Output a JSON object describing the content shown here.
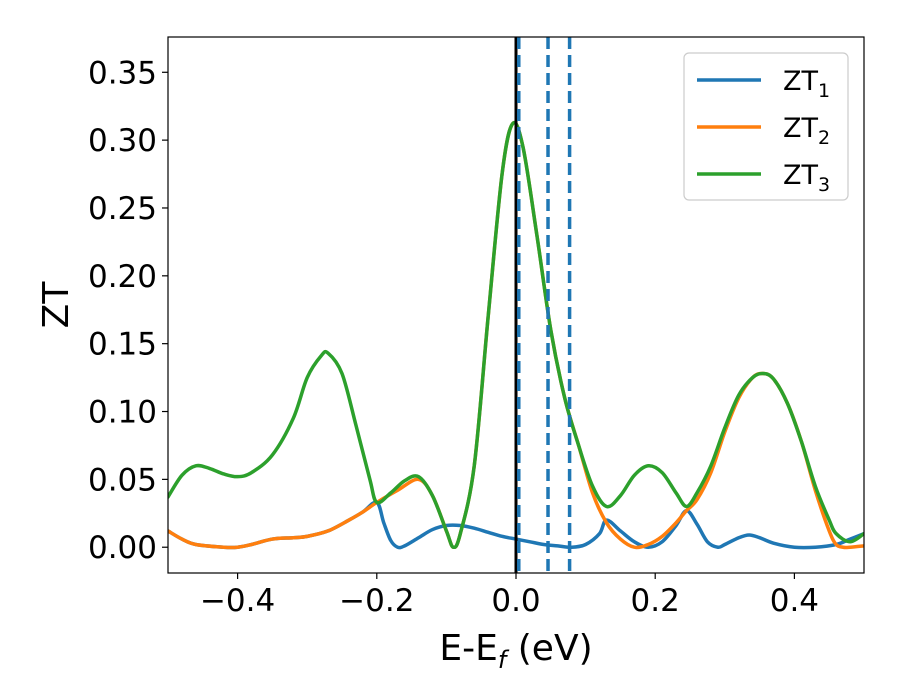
{
  "chart_data": {
    "type": "line",
    "title": "",
    "xlabel": "E-E",
    "xlabel_sub": "f",
    "xlabel_unit": " (eV)",
    "ylabel": "ZT",
    "xlim": [
      -0.5,
      0.5
    ],
    "ylim": [
      -0.019,
      0.376
    ],
    "xticks": [
      -0.4,
      -0.2,
      0.0,
      0.2,
      0.4
    ],
    "xtick_labels": [
      "−0.4",
      "−0.2",
      "0.0",
      "0.2",
      "0.4"
    ],
    "yticks": [
      0.0,
      0.05,
      0.1,
      0.15,
      0.2,
      0.25,
      0.3,
      0.35
    ],
    "ytick_labels": [
      "0.00",
      "0.05",
      "0.10",
      "0.15",
      "0.20",
      "0.25",
      "0.30",
      "0.35"
    ],
    "grid": false,
    "legend_position": "top-right",
    "vertical_lines": [
      {
        "x": 0.0,
        "style": "solid",
        "color": "#000000"
      },
      {
        "x": 0.004,
        "style": "dashed",
        "color": "#1f77b4"
      },
      {
        "x": 0.046,
        "style": "dashed",
        "color": "#1f77b4"
      },
      {
        "x": 0.077,
        "style": "dashed",
        "color": "#1f77b4"
      }
    ],
    "series": [
      {
        "name": "ZT",
        "name_sub": "1",
        "color": "#1f77b4",
        "points": [
          [
            -0.5,
            0.012
          ],
          [
            -0.48,
            0.006
          ],
          [
            -0.46,
            0.002
          ],
          [
            -0.42,
            0.0
          ],
          [
            -0.4,
            0.0
          ],
          [
            -0.38,
            0.002
          ],
          [
            -0.35,
            0.006
          ],
          [
            -0.32,
            0.007
          ],
          [
            -0.3,
            0.008
          ],
          [
            -0.27,
            0.012
          ],
          [
            -0.24,
            0.02
          ],
          [
            -0.22,
            0.026
          ],
          [
            -0.2,
            0.033
          ],
          [
            -0.19,
            0.018
          ],
          [
            -0.18,
            0.005
          ],
          [
            -0.17,
            0.0
          ],
          [
            -0.16,
            0.001
          ],
          [
            -0.14,
            0.007
          ],
          [
            -0.12,
            0.013
          ],
          [
            -0.1,
            0.016
          ],
          [
            -0.08,
            0.016
          ],
          [
            -0.06,
            0.014
          ],
          [
            -0.04,
            0.011
          ],
          [
            -0.02,
            0.008
          ],
          [
            0.0,
            0.006
          ],
          [
            0.02,
            0.004
          ],
          [
            0.04,
            0.002
          ],
          [
            0.06,
            0.001
          ],
          [
            0.08,
            0.0
          ],
          [
            0.1,
            0.002
          ],
          [
            0.12,
            0.01
          ],
          [
            0.13,
            0.02
          ],
          [
            0.15,
            0.012
          ],
          [
            0.17,
            0.004
          ],
          [
            0.19,
            0.0
          ],
          [
            0.21,
            0.004
          ],
          [
            0.23,
            0.016
          ],
          [
            0.245,
            0.027
          ],
          [
            0.26,
            0.017
          ],
          [
            0.275,
            0.004
          ],
          [
            0.29,
            0.0
          ],
          [
            0.3,
            0.002
          ],
          [
            0.32,
            0.007
          ],
          [
            0.335,
            0.009
          ],
          [
            0.35,
            0.007
          ],
          [
            0.37,
            0.003
          ],
          [
            0.4,
            0.0
          ],
          [
            0.43,
            0.0
          ],
          [
            0.46,
            0.002
          ],
          [
            0.48,
            0.006
          ],
          [
            0.5,
            0.01
          ]
        ]
      },
      {
        "name": "ZT",
        "name_sub": "2",
        "color": "#ff7f0e",
        "points": [
          [
            -0.5,
            0.012
          ],
          [
            -0.48,
            0.006
          ],
          [
            -0.46,
            0.002
          ],
          [
            -0.42,
            0.0
          ],
          [
            -0.4,
            0.0
          ],
          [
            -0.38,
            0.002
          ],
          [
            -0.35,
            0.006
          ],
          [
            -0.32,
            0.007
          ],
          [
            -0.3,
            0.008
          ],
          [
            -0.27,
            0.012
          ],
          [
            -0.24,
            0.02
          ],
          [
            -0.22,
            0.026
          ],
          [
            -0.2,
            0.033
          ],
          [
            -0.17,
            0.042
          ],
          [
            -0.14,
            0.05
          ],
          [
            -0.12,
            0.038
          ],
          [
            -0.1,
            0.012
          ],
          [
            -0.09,
            0.0
          ],
          [
            -0.08,
            0.01
          ],
          [
            -0.06,
            0.06
          ],
          [
            -0.04,
            0.17
          ],
          [
            -0.02,
            0.275
          ],
          [
            -0.005,
            0.312
          ],
          [
            0.01,
            0.295
          ],
          [
            0.03,
            0.23
          ],
          [
            0.05,
            0.16
          ],
          [
            0.07,
            0.11
          ],
          [
            0.09,
            0.075
          ],
          [
            0.11,
            0.04
          ],
          [
            0.13,
            0.018
          ],
          [
            0.15,
            0.006
          ],
          [
            0.17,
            0.0
          ],
          [
            0.19,
            0.002
          ],
          [
            0.21,
            0.008
          ],
          [
            0.23,
            0.018
          ],
          [
            0.245,
            0.027
          ],
          [
            0.26,
            0.035
          ],
          [
            0.28,
            0.055
          ],
          [
            0.3,
            0.085
          ],
          [
            0.32,
            0.11
          ],
          [
            0.34,
            0.125
          ],
          [
            0.355,
            0.128
          ],
          [
            0.37,
            0.124
          ],
          [
            0.39,
            0.106
          ],
          [
            0.41,
            0.078
          ],
          [
            0.43,
            0.042
          ],
          [
            0.45,
            0.012
          ],
          [
            0.46,
            0.002
          ],
          [
            0.47,
            0.0
          ],
          [
            0.48,
            0.0
          ],
          [
            0.5,
            0.001
          ]
        ]
      },
      {
        "name": "ZT",
        "name_sub": "3",
        "color": "#2ca02c",
        "points": [
          [
            -0.5,
            0.037
          ],
          [
            -0.48,
            0.053
          ],
          [
            -0.46,
            0.06
          ],
          [
            -0.44,
            0.058
          ],
          [
            -0.42,
            0.054
          ],
          [
            -0.4,
            0.052
          ],
          [
            -0.38,
            0.055
          ],
          [
            -0.35,
            0.068
          ],
          [
            -0.32,
            0.095
          ],
          [
            -0.3,
            0.125
          ],
          [
            -0.28,
            0.141
          ],
          [
            -0.27,
            0.143
          ],
          [
            -0.25,
            0.128
          ],
          [
            -0.23,
            0.09
          ],
          [
            -0.21,
            0.05
          ],
          [
            -0.2,
            0.033
          ],
          [
            -0.18,
            0.04
          ],
          [
            -0.16,
            0.049
          ],
          [
            -0.14,
            0.052
          ],
          [
            -0.12,
            0.038
          ],
          [
            -0.1,
            0.012
          ],
          [
            -0.09,
            0.0
          ],
          [
            -0.08,
            0.01
          ],
          [
            -0.06,
            0.06
          ],
          [
            -0.04,
            0.17
          ],
          [
            -0.02,
            0.275
          ],
          [
            -0.005,
            0.312
          ],
          [
            0.01,
            0.295
          ],
          [
            0.03,
            0.23
          ],
          [
            0.05,
            0.16
          ],
          [
            0.07,
            0.11
          ],
          [
            0.09,
            0.075
          ],
          [
            0.11,
            0.045
          ],
          [
            0.13,
            0.03
          ],
          [
            0.15,
            0.038
          ],
          [
            0.17,
            0.053
          ],
          [
            0.19,
            0.06
          ],
          [
            0.21,
            0.055
          ],
          [
            0.23,
            0.04
          ],
          [
            0.245,
            0.03
          ],
          [
            0.26,
            0.04
          ],
          [
            0.28,
            0.06
          ],
          [
            0.3,
            0.088
          ],
          [
            0.32,
            0.112
          ],
          [
            0.34,
            0.125
          ],
          [
            0.355,
            0.128
          ],
          [
            0.37,
            0.124
          ],
          [
            0.39,
            0.106
          ],
          [
            0.41,
            0.078
          ],
          [
            0.43,
            0.045
          ],
          [
            0.45,
            0.02
          ],
          [
            0.46,
            0.01
          ],
          [
            0.48,
            0.004
          ],
          [
            0.5,
            0.01
          ]
        ]
      }
    ]
  }
}
